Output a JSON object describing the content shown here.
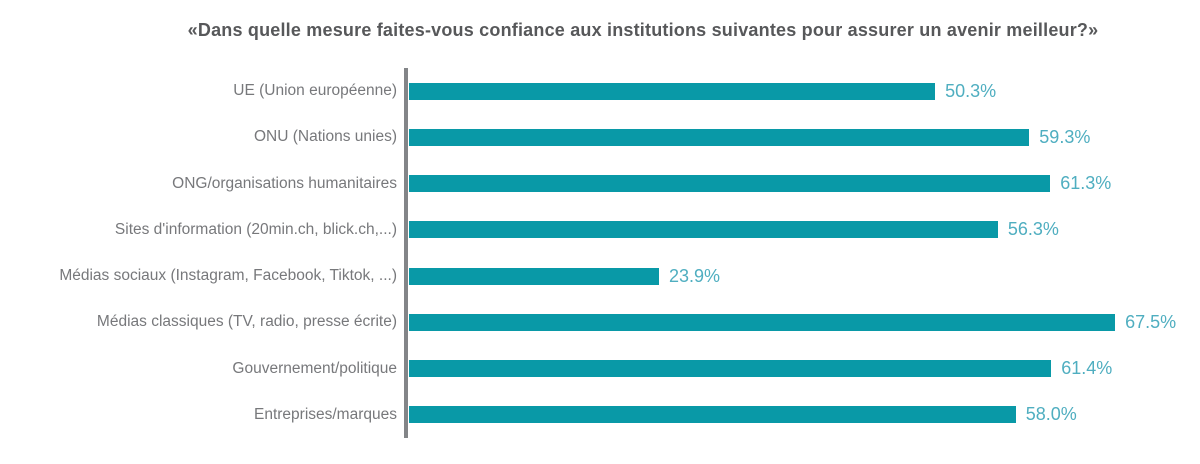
{
  "chart_data": {
    "type": "bar",
    "orientation": "horizontal",
    "title": "«Dans quelle mesure faites-vous confiance aux institutions suivantes pour assurer un avenir meilleur?»",
    "categories": [
      "UE (Union européenne)",
      "ONU (Nations unies)",
      "ONG/organisations humanitaires",
      "Sites d'information (20min.ch, blick.ch,...)",
      "Médias sociaux (Instagram, Facebook, Tiktok, ...)",
      "Médias classiques (TV, radio, presse écrite)",
      "Gouvernement/politique",
      "Entreprises/marques"
    ],
    "values": [
      50.3,
      59.3,
      61.3,
      56.3,
      23.9,
      67.5,
      61.4,
      58.0
    ],
    "value_labels": [
      "50.3%",
      "59.3%",
      "61.3%",
      "56.3%",
      "23.9%",
      "67.5%",
      "61.4%",
      "58.0%"
    ],
    "xlim": [
      0,
      74
    ],
    "grid": false,
    "legend": false,
    "colors": {
      "bar": "#0999a7",
      "value_label": "#4faec0",
      "category_label": "#77787b",
      "title": "#57585a",
      "axis_line": "#838588",
      "background": "#ffffff"
    }
  }
}
